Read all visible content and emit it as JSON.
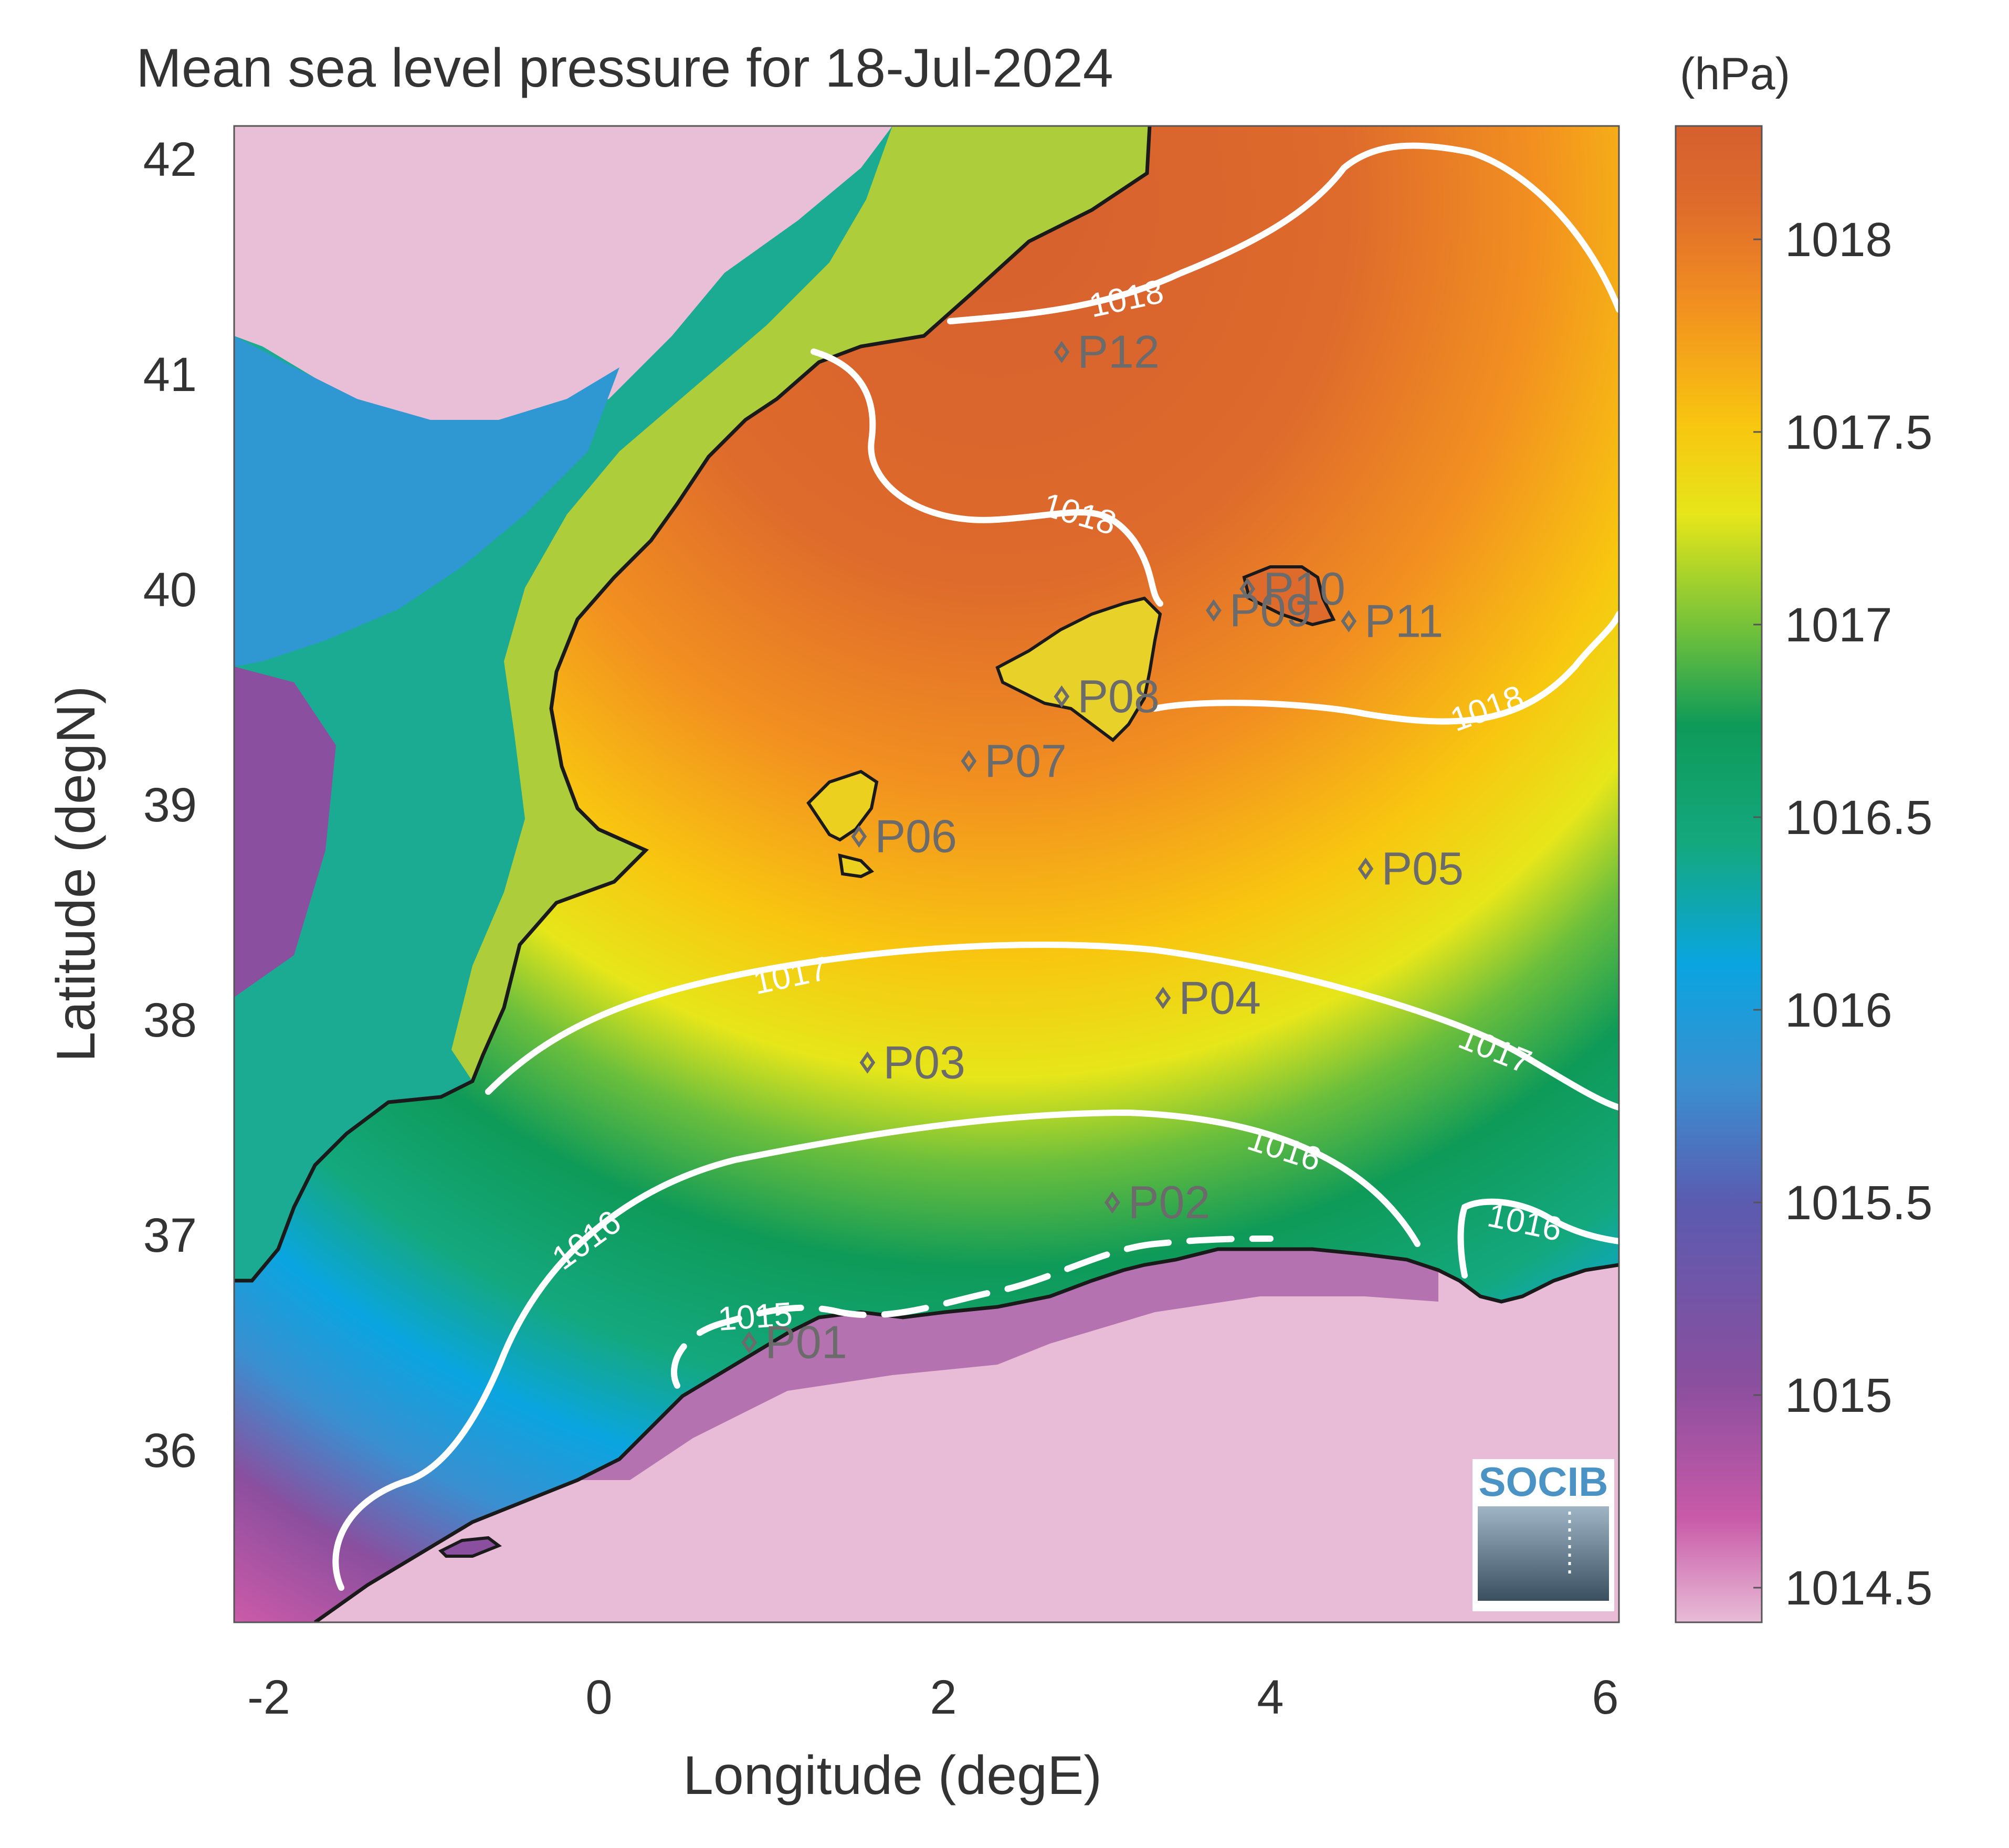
{
  "title": "Mean sea level pressure for 18-Jul-2024",
  "colorbar_unit": "(hPa)",
  "colorbar_ticks": [
    "1018",
    "1017.5",
    "1017",
    "1016.5",
    "1016",
    "1015.5",
    "1015",
    "1014.5"
  ],
  "xlabel": "Longitude (degE)",
  "ylabel": "Latitude (degN)",
  "x_ticks": [
    "-2",
    "0",
    "2",
    "4",
    "6"
  ],
  "y_ticks": [
    "42",
    "41",
    "40",
    "39",
    "38",
    "37",
    "36"
  ],
  "contour_labels": [
    "1018",
    "1018",
    "1018",
    "1017",
    "1017",
    "1016",
    "1016",
    "1016",
    "1015"
  ],
  "stations": [
    {
      "id": "P01",
      "lon": 0.85,
      "lat": 36.5
    },
    {
      "id": "P02",
      "lon": 3.0,
      "lat": 37.15
    },
    {
      "id": "P03",
      "lon": 1.55,
      "lat": 37.8
    },
    {
      "id": "P04",
      "lon": 3.3,
      "lat": 38.1
    },
    {
      "id": "P05",
      "lon": 4.5,
      "lat": 38.7
    },
    {
      "id": "P06",
      "lon": 1.5,
      "lat": 38.85
    },
    {
      "id": "P07",
      "lon": 2.15,
      "lat": 39.2
    },
    {
      "id": "P08",
      "lon": 2.7,
      "lat": 39.5
    },
    {
      "id": "P09",
      "lon": 3.6,
      "lat": 39.9
    },
    {
      "id": "P10",
      "lon": 3.8,
      "lat": 40.0
    },
    {
      "id": "P11",
      "lon": 4.4,
      "lat": 39.85
    },
    {
      "id": "P12",
      "lon": 2.7,
      "lat": 41.1
    }
  ],
  "logo_text": "SOCIB",
  "colors": {
    "colormap": [
      "#e8bcd6",
      "#c85aa8",
      "#8a4f9e",
      "#5b5bb0",
      "#3a8fd0",
      "#0aa5e0",
      "#14a87e",
      "#0e9a58",
      "#6cbf3c",
      "#e6e61a",
      "#f8c610",
      "#f29020",
      "#de6a2c",
      "#d6602e"
    ],
    "contour": "#ffffff",
    "coastline": "#1a1a1a",
    "station": "#6b6b6b"
  }
}
